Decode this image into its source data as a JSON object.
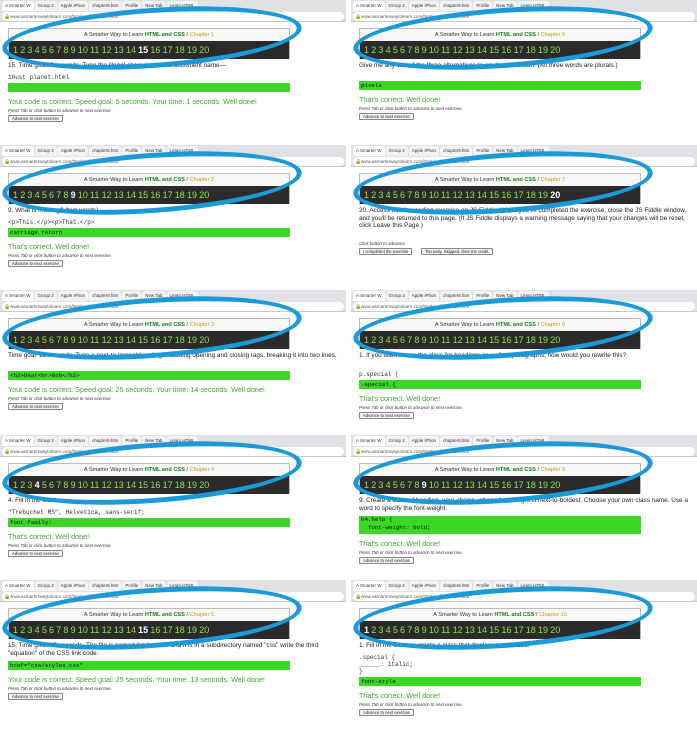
{
  "course": {
    "prefix": "A Smarter Way to Learn ",
    "highlight": "HTML and CSS",
    "sep": " / "
  },
  "url": "www.asmarterwaytolearn.com/htmlcss/html-lube.html",
  "tab_labels": [
    "A Smarter W",
    "Group 2",
    "Apple iPhon",
    "chapter9.htm",
    "Profile",
    "New Tab",
    "Learn HTML"
  ],
  "panels": [
    {
      "chapter": "Chapter 1",
      "current": 15,
      "question": "15. Time goal: 5 seconds. Type the illegal character in this document name—",
      "code": "10ust planet.html",
      "answer": "",
      "feedback": "Your code is correct. Speed goal: 5 seconds. Your time: 1 seconds. Well done!",
      "hint": "Press Tab or click button to advance to next exercise.",
      "button": "Advance to next exercise"
    },
    {
      "chapter": "Chapter 6",
      "current": 0,
      "question": "Give me any one of the three alternatives to em that I mention. (All three words are plurals.)",
      "code": "",
      "answer": "pixels",
      "feedback": "That's correct. Well done!",
      "hint": "Press Tab or click button to advance to next exercise.",
      "button": "Advance to next exercise"
    },
    {
      "chapter": "Chapter 2",
      "current": 9,
      "question": "9. What is missing? (two words)",
      "code": "<p>This.</p><p>That.</p>",
      "answer": "carriage return",
      "feedback": "That's correct. Well done!",
      "hint": "Press Tab or click button to advance to next exercise.",
      "button": "Advance to next exercise"
    },
    {
      "chapter": "Chapter 7",
      "current": 20,
      "question": "20. Access this live coding exercise on JS Fiddle. When you've completed the exercise, close the JS Fiddle window, and you'll be returned to this page. (If JS Fiddle displays a warning message saying that your changes will be reset, click Leave this Page.)",
      "code": "",
      "answer": "",
      "feedback": "",
      "hint": "Click button to advance.",
      "button": "I completed the exercise",
      "button2": "Too easy. Skipped. Give me credit."
    },
    {
      "chapter": "Chapter 3",
      "current": 0,
      "question": "Time goal: 25 seconds. Type a next-to-largest heading, including opening and closing tags, breaking it into two lines.",
      "code": "",
      "answer": "<h2>Dear<br>Bob</h2>",
      "feedback": "Your code is correct. Speed goal: 25 seconds. Your time: 14 seconds. Well done!",
      "hint": "Press Tab or click button to advance to next exercise.",
      "button": "Advance to next exercise"
    },
    {
      "chapter": "Chapter 8",
      "current": 0,
      "question": "1. If you want to use the class for headings as well as paragraphs, how would you rewrite this?",
      "code": "p.special {",
      "answer": ".special {",
      "feedback": "That's correct. Well done!",
      "hint": "Press Tab or click button to advance to next exercise.",
      "button": "Advance to next exercise"
    },
    {
      "chapter": "Chapter 4",
      "current": 4,
      "question": "4. Fill in the blank.",
      "code": "\"Trebuchet MS\", Helvetica, sans-serif;",
      "answer": "font-family:",
      "feedback": "That's correct. Well done!",
      "hint": "Press Tab or click button to advance to next exercise.",
      "button": "Advance to next exercise"
    },
    {
      "chapter": "Chapter 9",
      "current": 9,
      "question": "9. Create a class of heading, your choice, whose font-weight is next-to-boldest. Choose your own class name. Use a word to specify the font-weight.",
      "code": "",
      "answer": "h4.help {\n  font-weight: bold;",
      "feedback": "That's correct. Well done!",
      "hint": "Press Tab or click button to advance to next exercise.",
      "button": "Advance to next exercise"
    },
    {
      "chapter": "Chapter 5",
      "current": 15,
      "question": "15. Time goal: 25 seconds. The file is named \"styles.css\" and it is in a subdirectory named \"css\" write the third \"equation\" of the CSS link code.",
      "code": "",
      "answer": "href=\"css/styles.css\"",
      "feedback": "Your code is correct. Speed goal: 25 seconds. Your time: 13 seconds. Well done!",
      "hint": "Press Tab or click button to advance to next exercise.",
      "button": "Advance to next exercise"
    },
    {
      "chapter": "Chapter 10",
      "current": 1,
      "question": "1. Fill in the blank to create a class that displays text in italic.",
      "code": ".special {\n  ______: italic;\n}",
      "answer": "font-style",
      "feedback": "That's correct. Well done!",
      "hint": "Press Tab or click button to advance to next exercise.",
      "button": "Advance to next exercise"
    }
  ]
}
